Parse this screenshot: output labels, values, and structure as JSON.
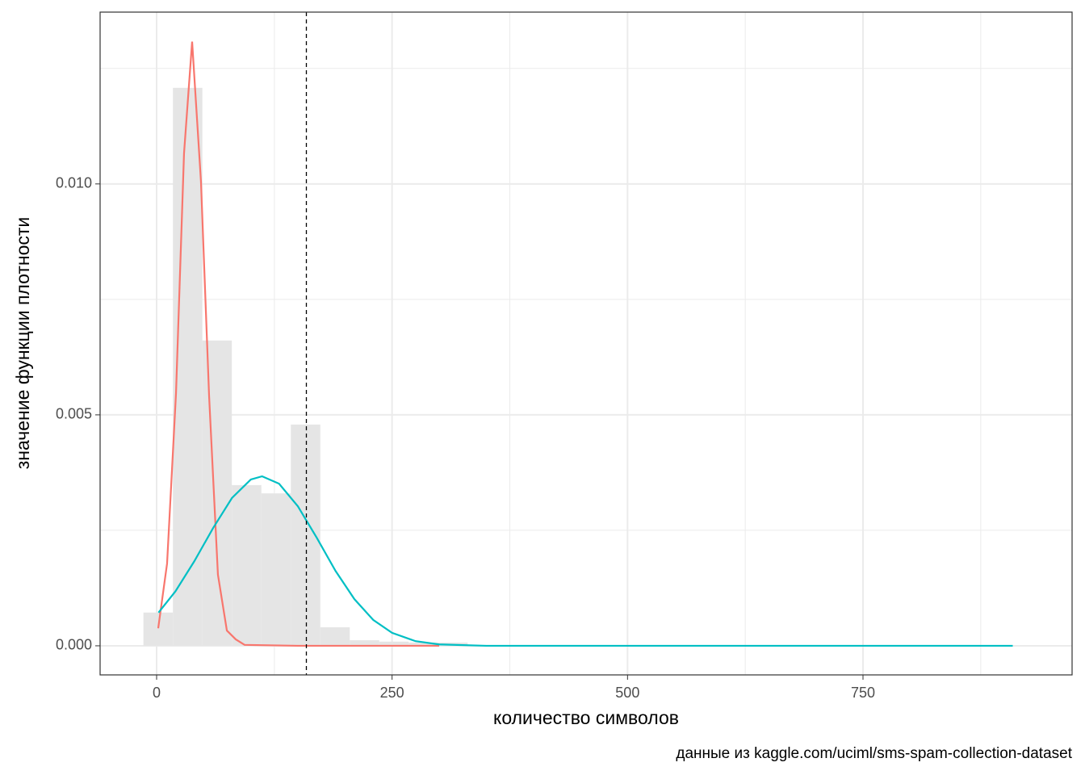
{
  "chart_data": {
    "type": "histogram",
    "xlabel": "количество символов",
    "ylabel": "значение функции плотности",
    "caption": "данные из kaggle.com/uciml/sms-spam-collection-dataset",
    "bins": [
      -14,
      17.3,
      48.6,
      79.9,
      111.2,
      142.5,
      173.8,
      205.1,
      236.4,
      267.7,
      299,
      330.3
    ],
    "values": [
      0.00072,
      0.01208,
      0.00661,
      0.00348,
      0.0033,
      0.00479,
      0.0004,
      0.00012,
      9e-05,
      7e-05,
      7e-05
    ],
    "color": "#e5e5e5",
    "series": [
      {
        "color": "#F8766D",
        "x": [
          1.7,
          11.1,
          20.6,
          29.1,
          37.7,
          47.1,
          55.7,
          65.1,
          74.6,
          84,
          93.4,
          150,
          200,
          250,
          300
        ],
        "values": [
          0.00038,
          0.00178,
          0.00547,
          0.01066,
          0.01308,
          0.01005,
          0.00542,
          0.00154,
          0.00033,
          0.00014,
          2e-05,
          0,
          0,
          0,
          0
        ]
      },
      {
        "color": "#00BFC4",
        "x": [
          2,
          20,
          40,
          60,
          80,
          100,
          112,
          130,
          150,
          170,
          190,
          210,
          230,
          250,
          275,
          300,
          350,
          400,
          500,
          600,
          700,
          800,
          909
        ],
        "values": [
          0.00072,
          0.00118,
          0.00183,
          0.00255,
          0.0032,
          0.0036,
          0.00367,
          0.00351,
          0.00302,
          0.00234,
          0.00162,
          0.00101,
          0.00056,
          0.00028,
          0.0001,
          3e-05,
          0,
          0,
          0,
          0,
          0,
          0,
          0
        ]
      }
    ],
    "vline": 159,
    "xlim": [
      -60,
      972
    ],
    "ylim": [
      -0.00063,
      0.01372
    ],
    "xticks": [
      0,
      250,
      500,
      750
    ],
    "yticks": [
      {
        "value": 0,
        "label": "0.000"
      },
      {
        "value": 0.005,
        "label": "0.005"
      },
      {
        "value": 0.01,
        "label": "0.010"
      }
    ],
    "x_minor_ticks": [
      125,
      375,
      625,
      875
    ],
    "y_minor_ticks": [
      0.0025,
      0.0075,
      0.0125
    ],
    "grid": true
  }
}
